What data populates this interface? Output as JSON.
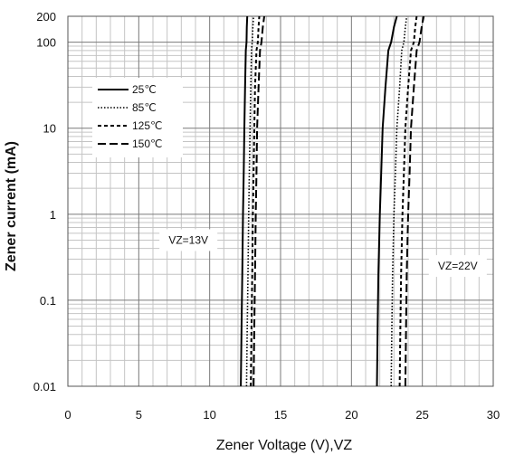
{
  "chart_data": {
    "type": "line",
    "xlabel": "Zener Voltage (V),VZ",
    "ylabel": "Zener current (mA)",
    "xlim": [
      0,
      30
    ],
    "ylim": [
      0.01,
      200
    ],
    "y_scale": "log",
    "grid": true,
    "x_ticks": [
      "0",
      "5",
      "10",
      "15",
      "20",
      "25",
      "30"
    ],
    "y_ticks": [
      {
        "value": 0.01,
        "label": "0.01"
      },
      {
        "value": 0.1,
        "label": "0.1"
      },
      {
        "value": 1,
        "label": "1"
      },
      {
        "value": 10,
        "label": "10"
      },
      {
        "value": 100,
        "label": "100"
      },
      {
        "value": 200,
        "label": "200"
      }
    ],
    "legend_position": "upper-left",
    "series": [
      {
        "name": "25℃",
        "style": "solid",
        "groups": [
          {
            "x": [
              12.2,
              12.25,
              12.3,
              12.35,
              12.4,
              12.45,
              12.5,
              12.55,
              12.6,
              12.62,
              12.65
            ],
            "y": [
              0.01,
              0.05,
              0.2,
              1,
              3,
              10,
              30,
              80,
              100,
              150,
              200
            ]
          },
          {
            "x": [
              21.8,
              21.85,
              21.9,
              22.0,
              22.1,
              22.2,
              22.4,
              22.6,
              22.8,
              23.0,
              23.2
            ],
            "y": [
              0.01,
              0.05,
              0.2,
              1,
              3,
              10,
              30,
              80,
              100,
              150,
              200
            ]
          }
        ]
      },
      {
        "name": "85℃",
        "style": "dotted",
        "groups": [
          {
            "x": [
              12.6,
              12.65,
              12.7,
              12.75,
              12.8,
              12.85,
              12.9,
              12.95,
              13.0,
              13.05,
              13.1
            ],
            "y": [
              0.01,
              0.05,
              0.2,
              1,
              3,
              10,
              30,
              80,
              100,
              150,
              200
            ]
          },
          {
            "x": [
              22.8,
              22.85,
              22.9,
              23.0,
              23.1,
              23.2,
              23.4,
              23.55,
              23.7,
              23.8,
              23.9
            ],
            "y": [
              0.01,
              0.05,
              0.2,
              1,
              3,
              10,
              30,
              80,
              100,
              150,
              200
            ]
          }
        ]
      },
      {
        "name": "125℃",
        "style": "short-dash",
        "groups": [
          {
            "x": [
              12.9,
              12.95,
              13.0,
              13.05,
              13.1,
              13.15,
              13.2,
              13.3,
              13.4,
              13.45,
              13.5
            ],
            "y": [
              0.01,
              0.05,
              0.2,
              1,
              3,
              10,
              30,
              80,
              100,
              150,
              200
            ]
          },
          {
            "x": [
              23.4,
              23.45,
              23.5,
              23.6,
              23.7,
              23.8,
              24.0,
              24.2,
              24.4,
              24.5,
              24.6
            ],
            "y": [
              0.01,
              0.05,
              0.2,
              1,
              3,
              10,
              30,
              80,
              100,
              150,
              200
            ]
          }
        ]
      },
      {
        "name": "150℃",
        "style": "long-dash",
        "groups": [
          {
            "x": [
              13.1,
              13.15,
              13.2,
              13.25,
              13.3,
              13.35,
              13.45,
              13.55,
              13.65,
              13.75,
              13.85
            ],
            "y": [
              0.01,
              0.05,
              0.2,
              1,
              3,
              10,
              30,
              80,
              100,
              150,
              200
            ]
          },
          {
            "x": [
              23.8,
              23.85,
              23.9,
              24.0,
              24.1,
              24.2,
              24.4,
              24.6,
              24.8,
              24.95,
              25.1
            ],
            "y": [
              0.01,
              0.05,
              0.2,
              1,
              3,
              10,
              30,
              80,
              100,
              150,
              200
            ]
          }
        ]
      }
    ],
    "annotations": [
      {
        "text": "VZ=13V",
        "x": 8.5,
        "y": 0.5
      },
      {
        "text": "VZ=22V",
        "x": 27.5,
        "y": 0.25
      }
    ]
  }
}
